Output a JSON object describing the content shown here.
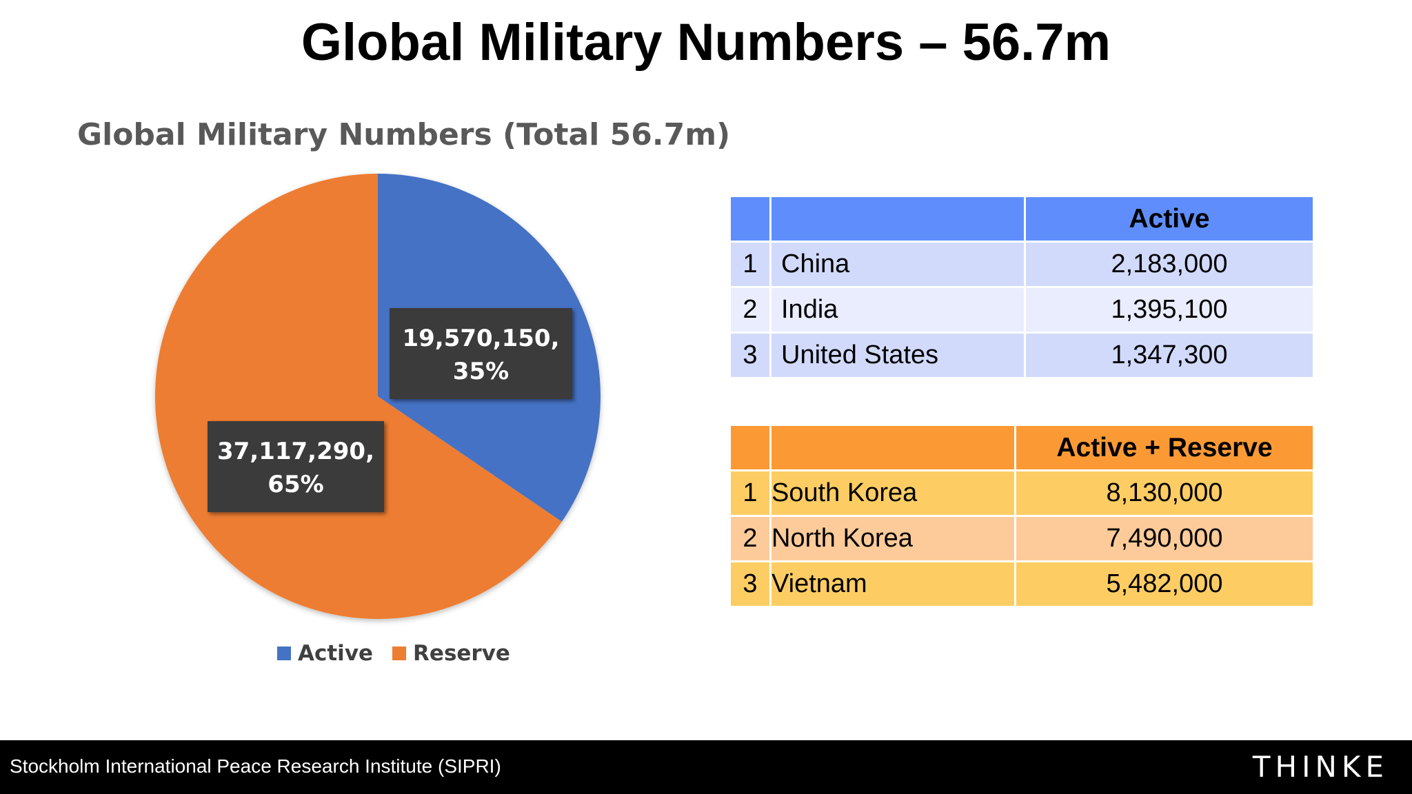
{
  "slide": {
    "title": "Global Military Numbers – 56.7m"
  },
  "chart_data": {
    "type": "pie",
    "title": "Global Military Numbers (Total 56.7m)",
    "categories": [
      "Active",
      "Reserve"
    ],
    "values": [
      19570150,
      37117290
    ],
    "percentages": [
      35,
      65
    ],
    "data_labels": [
      "19,570,150,\n35%",
      "37,117,290,\n65%"
    ],
    "colors": [
      "#4472c4",
      "#ed7d31"
    ],
    "legend_position": "bottom",
    "legend": [
      "Active",
      "Reserve"
    ]
  },
  "active_table": {
    "header": "Active",
    "rows": [
      {
        "rank": "1",
        "country": "China",
        "value": "2,183,000"
      },
      {
        "rank": "2",
        "country": "India",
        "value": "1,395,100"
      },
      {
        "rank": "3",
        "country": "United States",
        "value": "1,347,300"
      }
    ]
  },
  "reserve_table": {
    "header": "Active + Reserve",
    "rows": [
      {
        "rank": "1",
        "country": "South Korea",
        "value": "8,130,000"
      },
      {
        "rank": "2",
        "country": "North Korea",
        "value": "7,490,000"
      },
      {
        "rank": "3",
        "country": "Vietnam",
        "value": "5,482,000"
      }
    ]
  },
  "footer": {
    "source": "Stockholm International Peace Research Institute (SIPRI)",
    "logo": "THINKE"
  }
}
